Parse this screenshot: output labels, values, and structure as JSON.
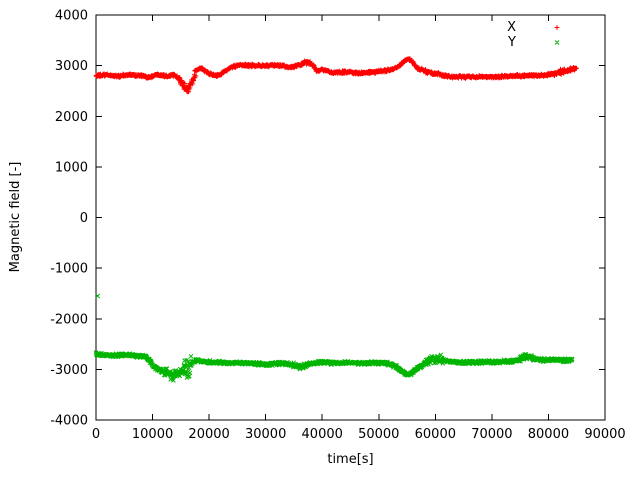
{
  "chart_data": {
    "type": "scatter",
    "title": "",
    "xlabel": "time[s]",
    "ylabel": "Magnetic field [-]",
    "xlim": [
      0,
      90000
    ],
    "ylim": [
      -4000,
      4000
    ],
    "xticks": [
      0,
      10000,
      20000,
      30000,
      40000,
      50000,
      60000,
      70000,
      80000,
      90000
    ],
    "yticks": [
      -4000,
      -3000,
      -2000,
      -1000,
      0,
      1000,
      2000,
      3000,
      4000
    ],
    "grid": false,
    "legend_position": "top-right-inside",
    "series": [
      {
        "name": "X",
        "marker": "plus-icon",
        "color": "#ff0000",
        "base_noise": 38,
        "noise_bursts": [
          [
            14800,
            17700,
            75
          ],
          [
            36000,
            38600,
            22
          ],
          [
            57600,
            60800,
            18
          ],
          [
            80800,
            85000,
            26
          ]
        ],
        "outliers": [],
        "anchors": [
          [
            0,
            2800
          ],
          [
            2000,
            2815
          ],
          [
            4000,
            2790
          ],
          [
            6000,
            2820
          ],
          [
            8000,
            2800
          ],
          [
            9500,
            2770
          ],
          [
            11000,
            2830
          ],
          [
            12500,
            2795
          ],
          [
            14000,
            2820
          ],
          [
            15000,
            2700
          ],
          [
            15600,
            2590
          ],
          [
            16100,
            2520
          ],
          [
            16600,
            2560
          ],
          [
            17100,
            2700
          ],
          [
            17600,
            2860
          ],
          [
            18100,
            2930
          ],
          [
            18600,
            2950
          ],
          [
            19200,
            2900
          ],
          [
            20000,
            2845
          ],
          [
            21000,
            2800
          ],
          [
            22000,
            2830
          ],
          [
            23000,
            2905
          ],
          [
            24000,
            2970
          ],
          [
            25000,
            3000
          ],
          [
            27000,
            3005
          ],
          [
            29000,
            3000
          ],
          [
            31000,
            3000
          ],
          [
            33000,
            3005
          ],
          [
            34000,
            2960
          ],
          [
            35000,
            2980
          ],
          [
            36200,
            3025
          ],
          [
            37200,
            3055
          ],
          [
            37800,
            3060
          ],
          [
            38400,
            3010
          ],
          [
            39000,
            2890
          ],
          [
            40000,
            2920
          ],
          [
            41000,
            2890
          ],
          [
            42000,
            2855
          ],
          [
            43500,
            2870
          ],
          [
            45000,
            2875
          ],
          [
            46500,
            2850
          ],
          [
            48000,
            2860
          ],
          [
            49500,
            2875
          ],
          [
            51000,
            2900
          ],
          [
            52500,
            2930
          ],
          [
            53500,
            2990
          ],
          [
            54300,
            3070
          ],
          [
            54900,
            3120
          ],
          [
            55400,
            3125
          ],
          [
            55900,
            3080
          ],
          [
            56400,
            3010
          ],
          [
            57000,
            2930
          ],
          [
            57600,
            2915
          ],
          [
            58300,
            2885
          ],
          [
            59500,
            2850
          ],
          [
            60500,
            2830
          ],
          [
            61500,
            2800
          ],
          [
            62500,
            2785
          ],
          [
            64000,
            2778
          ],
          [
            66000,
            2780
          ],
          [
            68000,
            2778
          ],
          [
            70000,
            2780
          ],
          [
            72000,
            2785
          ],
          [
            73500,
            2792
          ],
          [
            75000,
            2800
          ],
          [
            76500,
            2808
          ],
          [
            78000,
            2800
          ],
          [
            79500,
            2812
          ],
          [
            81000,
            2845
          ],
          [
            82000,
            2868
          ],
          [
            82600,
            2895
          ],
          [
            83200,
            2880
          ],
          [
            83800,
            2915
          ],
          [
            84400,
            2935
          ],
          [
            85000,
            2940
          ]
        ]
      },
      {
        "name": "Y",
        "marker": "cross-icon",
        "color": "#00b400",
        "base_noise": 45,
        "noise_bursts": [
          [
            11300,
            14900,
            62
          ],
          [
            15500,
            16900,
            260
          ],
          [
            34800,
            37000,
            30
          ],
          [
            57800,
            61500,
            55
          ],
          [
            74800,
            77300,
            38
          ]
        ],
        "outliers": [
          [
            300,
            -1550
          ]
        ],
        "anchors": [
          [
            0,
            -2700
          ],
          [
            1500,
            -2720
          ],
          [
            3000,
            -2725
          ],
          [
            4500,
            -2715
          ],
          [
            6000,
            -2725
          ],
          [
            7500,
            -2735
          ],
          [
            8800,
            -2750
          ],
          [
            9500,
            -2830
          ],
          [
            10200,
            -2940
          ],
          [
            10800,
            -2990
          ],
          [
            11500,
            -3020
          ],
          [
            12200,
            -3055
          ],
          [
            13000,
            -3095
          ],
          [
            13600,
            -3120
          ],
          [
            14200,
            -3100
          ],
          [
            14800,
            -3075
          ],
          [
            15300,
            -3040
          ],
          [
            15800,
            -2985
          ],
          [
            16200,
            -2940
          ],
          [
            16700,
            -2930
          ],
          [
            17200,
            -2850
          ],
          [
            17800,
            -2825
          ],
          [
            18500,
            -2840
          ],
          [
            19500,
            -2855
          ],
          [
            21000,
            -2860
          ],
          [
            23000,
            -2868
          ],
          [
            25000,
            -2870
          ],
          [
            27000,
            -2880
          ],
          [
            29000,
            -2895
          ],
          [
            30500,
            -2898
          ],
          [
            32000,
            -2882
          ],
          [
            33500,
            -2885
          ],
          [
            35000,
            -2920
          ],
          [
            36000,
            -2948
          ],
          [
            36800,
            -2935
          ],
          [
            37600,
            -2900
          ],
          [
            38500,
            -2880
          ],
          [
            40000,
            -2862
          ],
          [
            41500,
            -2870
          ],
          [
            43000,
            -2878
          ],
          [
            44500,
            -2870
          ],
          [
            46000,
            -2870
          ],
          [
            47500,
            -2878
          ],
          [
            49000,
            -2870
          ],
          [
            50500,
            -2872
          ],
          [
            52000,
            -2895
          ],
          [
            53000,
            -2945
          ],
          [
            54000,
            -3025
          ],
          [
            54700,
            -3085
          ],
          [
            55200,
            -3100
          ],
          [
            55800,
            -3075
          ],
          [
            56400,
            -3010
          ],
          [
            57000,
            -2955
          ],
          [
            57600,
            -2935
          ],
          [
            58200,
            -2870
          ],
          [
            58800,
            -2815
          ],
          [
            59400,
            -2785
          ],
          [
            60000,
            -2815
          ],
          [
            60600,
            -2795
          ],
          [
            61300,
            -2820
          ],
          [
            62500,
            -2850
          ],
          [
            64000,
            -2860
          ],
          [
            66000,
            -2862
          ],
          [
            68000,
            -2852
          ],
          [
            70000,
            -2850
          ],
          [
            72000,
            -2850
          ],
          [
            73500,
            -2842
          ],
          [
            74800,
            -2805
          ],
          [
            75500,
            -2762
          ],
          [
            76200,
            -2742
          ],
          [
            76900,
            -2768
          ],
          [
            77600,
            -2795
          ],
          [
            78500,
            -2812
          ],
          [
            80000,
            -2810
          ],
          [
            81500,
            -2818
          ],
          [
            83000,
            -2815
          ],
          [
            84200,
            -2808
          ]
        ]
      }
    ]
  }
}
